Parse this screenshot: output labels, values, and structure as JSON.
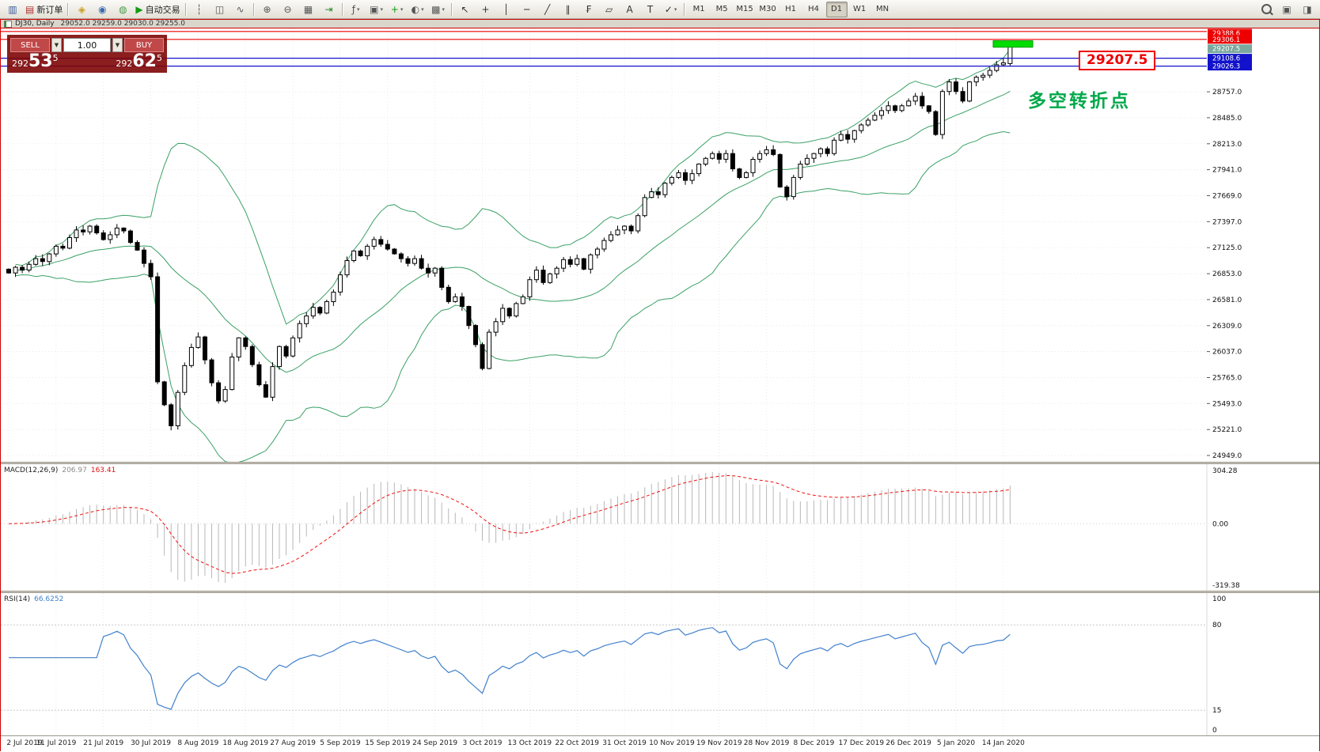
{
  "window": {
    "title_symbol": "DJ30, Daily",
    "title_ohlc": "29052.0 29259.0 29030.0 29255.0"
  },
  "toolbar": {
    "groups": [
      {
        "name": "file-group",
        "items": [
          {
            "name": "new-chart-button",
            "glyph": "▥",
            "color": "#3a5a9a"
          },
          {
            "name": "new-order-button",
            "glyph": "▤",
            "color": "#b03030",
            "label": "新订单"
          }
        ]
      },
      {
        "name": "panels-group",
        "items": [
          {
            "name": "profiles-button",
            "glyph": "◈",
            "color": "#c8a020"
          },
          {
            "name": "market-watch-button",
            "glyph": "◉",
            "color": "#3a6ab0"
          },
          {
            "name": "data-window-button",
            "glyph": "◍",
            "color": "#4a9a4a"
          },
          {
            "name": "auto-trading-button",
            "glyph": "▶",
            "color": "#149a14",
            "label": "自动交易"
          }
        ]
      },
      {
        "name": "chart-type-group",
        "items": [
          {
            "name": "bar-chart-button",
            "glyph": "┆",
            "color": "#555"
          },
          {
            "name": "candlestick-chart-button",
            "glyph": "◫",
            "color": "#555"
          },
          {
            "name": "line-chart-button",
            "glyph": "∿",
            "color": "#555"
          }
        ]
      },
      {
        "name": "zoom-group",
        "items": [
          {
            "name": "zoom-in-button",
            "glyph": "⊕",
            "color": "#555"
          },
          {
            "name": "zoom-out-button",
            "glyph": "⊖",
            "color": "#555"
          },
          {
            "name": "tile-windows-button",
            "glyph": "▦",
            "color": "#555"
          },
          {
            "name": "auto-scroll-button",
            "glyph": "⇥",
            "color": "#2a8a2a"
          }
        ]
      },
      {
        "name": "objects-group",
        "items": [
          {
            "name": "indicators-button",
            "glyph": "ƒ",
            "color": "#555",
            "dropdown": true
          },
          {
            "name": "objects-list-button",
            "glyph": "▣",
            "color": "#555",
            "dropdown": true
          },
          {
            "name": "add-indicator-button",
            "glyph": "+",
            "color": "#149a14",
            "dropdown": true
          },
          {
            "name": "periods-button",
            "glyph": "◐",
            "color": "#555",
            "dropdown": true
          },
          {
            "name": "templates-button",
            "glyph": "▩",
            "color": "#555",
            "dropdown": true
          }
        ]
      },
      {
        "name": "drawing-group",
        "items": [
          {
            "name": "cursor-button",
            "glyph": "↖",
            "color": "#333"
          },
          {
            "name": "crosshair-button",
            "glyph": "+",
            "color": "#333"
          },
          {
            "name": "vertical-line-button",
            "glyph": "│",
            "color": "#333"
          },
          {
            "name": "horizontal-line-button",
            "glyph": "─",
            "color": "#333"
          },
          {
            "name": "trendline-button",
            "glyph": "╱",
            "color": "#333"
          },
          {
            "name": "channel-button",
            "glyph": "∥",
            "color": "#333"
          },
          {
            "name": "fibonacci-button",
            "glyph": "₣",
            "color": "#333"
          },
          {
            "name": "shapes-button",
            "glyph": "▱",
            "color": "#333"
          },
          {
            "name": "text-button",
            "glyph": "A",
            "color": "#333"
          },
          {
            "name": "text-label-button",
            "glyph": "T",
            "color": "#333"
          },
          {
            "name": "arrows-button",
            "glyph": "✓",
            "color": "#333",
            "dropdown": true
          }
        ]
      }
    ],
    "timeframes": [
      "M1",
      "M5",
      "M15",
      "M30",
      "H1",
      "H4",
      "D1",
      "W1",
      "MN"
    ],
    "active_timeframe": "D1",
    "right_items": [
      {
        "name": "search-button",
        "glyph": "mag"
      },
      {
        "name": "new-window-button",
        "glyph": "▣",
        "color": "#555"
      },
      {
        "name": "window-list-button",
        "glyph": "◨",
        "color": "#555"
      }
    ]
  },
  "trade_panel": {
    "sell_label": "SELL",
    "buy_label": "BUY",
    "volume": "1.00",
    "sell_price": {
      "small": "292",
      "big": "53",
      "sup": "5"
    },
    "buy_price": {
      "small": "292",
      "big": "62",
      "sup": "5"
    }
  },
  "annotations": {
    "price_callout": "29207.5",
    "callout_color": "#ee0000",
    "turning_point_label": "多空转折点",
    "turning_point_color": "#00a84a",
    "highlight": {
      "price_top": 29292,
      "price_bottom": 29224,
      "color": "#00dd00"
    }
  },
  "chart_data": {
    "type": "candlestick",
    "symbol": "DJ30",
    "period": "Daily",
    "last_ohlc": {
      "open": 29052.0,
      "high": 29259.0,
      "low": 29030.0,
      "close": 29255.0
    },
    "indicators": [
      "Bollinger Bands(20,2)",
      "MACD(12,26,9)",
      "RSI(14)"
    ],
    "candle_up_color": "#ffffff",
    "candle_down_color": "#000000",
    "bollinger_color": "#3aa066",
    "x_labels": [
      "2 Jul 2019",
      "11 Jul 2019",
      "21 Jul 2019",
      "30 Jul 2019",
      "8 Aug 2019",
      "18 Aug 2019",
      "27 Aug 2019",
      "5 Sep 2019",
      "15 Sep 2019",
      "24 Sep 2019",
      "3 Oct 2019",
      "13 Oct 2019",
      "22 Oct 2019",
      "31 Oct 2019",
      "10 Nov 2019",
      "19 Nov 2019",
      "28 Nov 2019",
      "8 Dec 2019",
      "17 Dec 2019",
      "26 Dec 2019",
      "5 Jan 2020",
      "14 Jan 2020"
    ],
    "candles_per_label": 7,
    "closes": [
      26860,
      26920,
      26890,
      26950,
      27010,
      26980,
      27060,
      27140,
      27120,
      27230,
      27310,
      27290,
      27350,
      27280,
      27210,
      27260,
      27330,
      27300,
      27180,
      27100,
      26960,
      26820,
      25720,
      25480,
      25260,
      25610,
      25890,
      26080,
      26190,
      25950,
      25710,
      25520,
      25640,
      25980,
      26180,
      26090,
      25900,
      25690,
      25560,
      25880,
      26090,
      25990,
      26180,
      26330,
      26410,
      26500,
      26440,
      26560,
      26660,
      26840,
      26990,
      27090,
      27040,
      27140,
      27210,
      27160,
      27110,
      27060,
      27010,
      26960,
      27010,
      26910,
      26860,
      26910,
      26710,
      26560,
      26610,
      26510,
      26310,
      26110,
      25860,
      26240,
      26350,
      26490,
      26410,
      26540,
      26610,
      26790,
      26890,
      26760,
      26850,
      26910,
      27000,
      26950,
      27010,
      26900,
      27050,
      27110,
      27200,
      27260,
      27310,
      27350,
      27300,
      27460,
      27650,
      27710,
      27680,
      27800,
      27860,
      27910,
      27830,
      27900,
      28000,
      28060,
      28110,
      28050,
      28110,
      27950,
      27860,
      27910,
      28050,
      28110,
      28150,
      28100,
      27760,
      27660,
      27860,
      28000,
      28060,
      28110,
      28160,
      28110,
      28250,
      28310,
      28260,
      28350,
      28410,
      28460,
      28510,
      28560,
      28610,
      28560,
      28610,
      28660,
      28710,
      28610,
      28550,
      28310,
      28760,
      28860,
      28760,
      28660,
      28860,
      28910,
      28930,
      28980,
      29040,
      29060,
      29255
    ],
    "y_gridlines": [
      28757.0,
      28485.0,
      28213.0,
      27941.0,
      27669.0,
      27397.0,
      27125.0,
      26853.0,
      26581.0,
      26309.0,
      26037.0,
      25765.0,
      25493.0,
      25221.0,
      24949.0
    ],
    "horizontal_lines": [
      {
        "value": 29388.6,
        "label": "29388.6",
        "color": "#ee0000"
      },
      {
        "value": 29306.1,
        "label": "29306.1",
        "color": "#ee0000"
      },
      {
        "value": 29207.5,
        "label": "29207.5",
        "color": "#7aa89e",
        "tag_only": true
      },
      {
        "value": 29108.6,
        "label": "29108.6",
        "color": "#1212cc"
      },
      {
        "value": 29026.3,
        "label": "29026.3",
        "color": "#1212cc"
      }
    ]
  },
  "macd": {
    "label": "MACD(12,26,9)",
    "main_value": "206.97",
    "signal_value": "163.41",
    "scale_max": "304.28",
    "scale_zero": "0.00",
    "scale_min": "-319.38",
    "histogram_color": "#b8b8b8",
    "signal_color": "#ee1111"
  },
  "rsi": {
    "label": "RSI(14)",
    "value": "66.6252",
    "line_color": "#4080cc",
    "levels": [
      80,
      15
    ],
    "scale_labels": [
      "100",
      "80",
      "15",
      "0"
    ]
  }
}
